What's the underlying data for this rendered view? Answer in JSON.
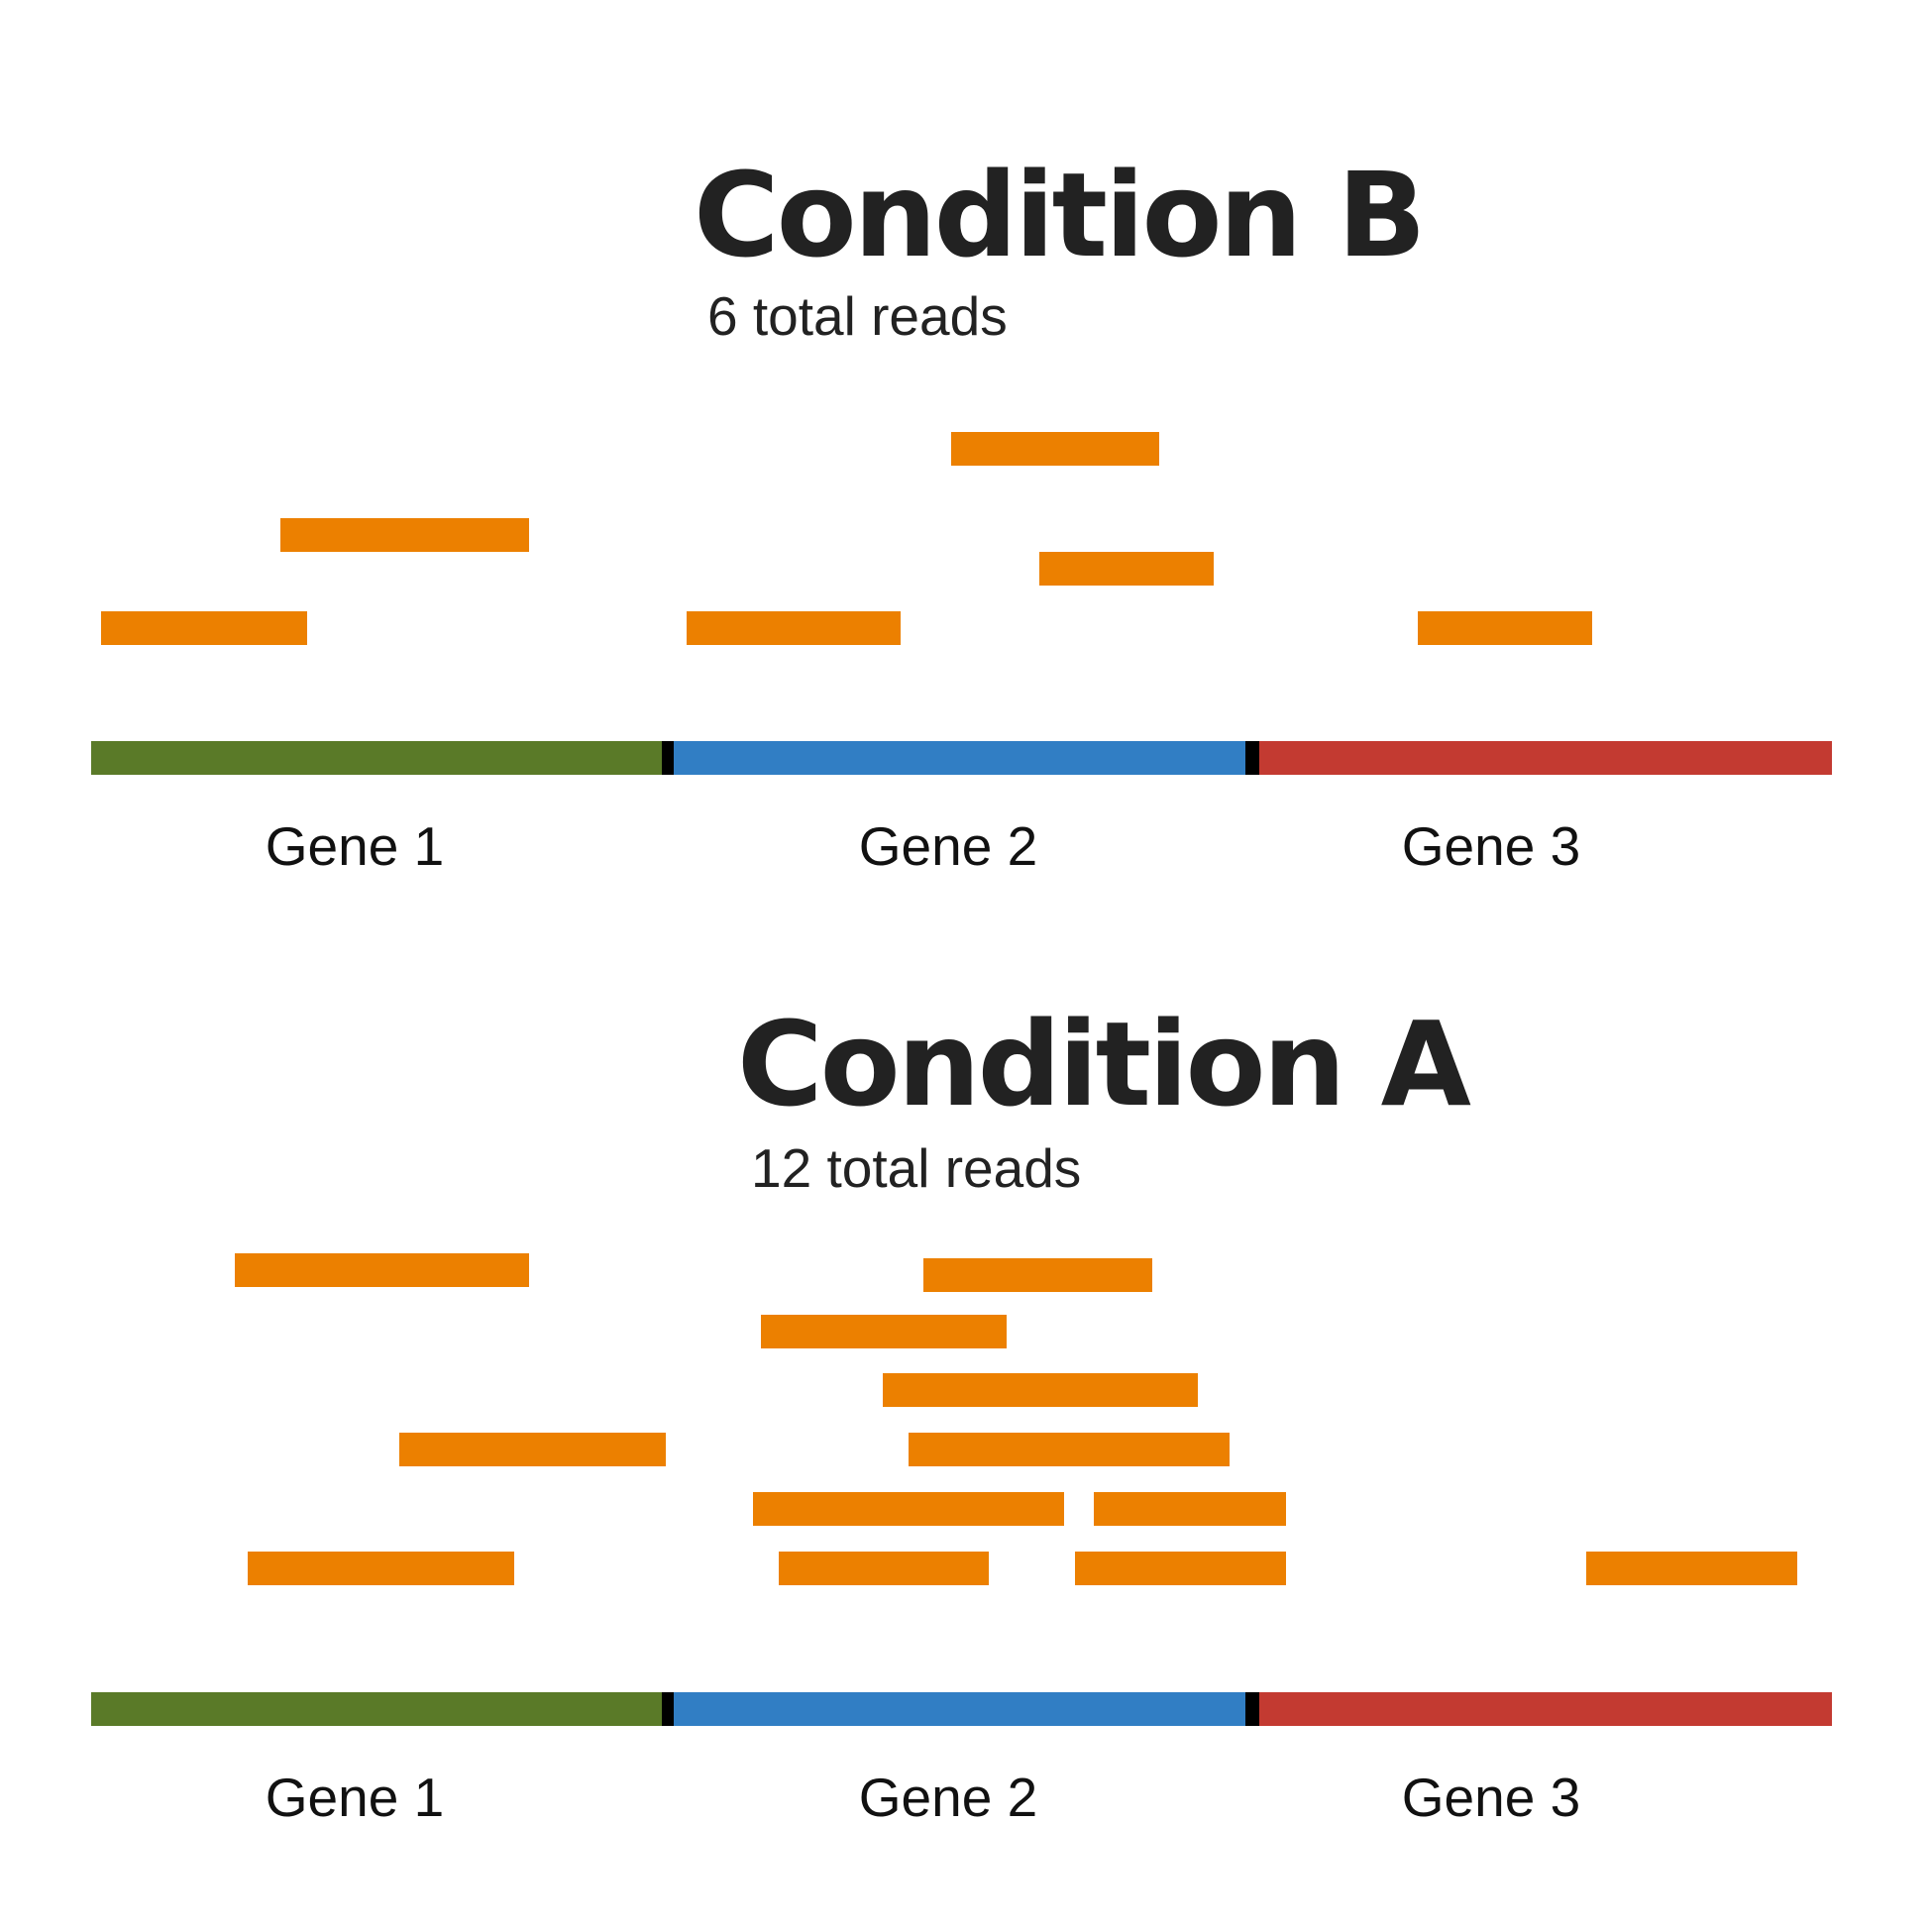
{
  "colors": {
    "read": "#ec8000",
    "gene_1": "#5a7a28",
    "gene_2": "#317ec4",
    "gene_3": "#c33a31",
    "boundary": "#000000",
    "text": "#222222"
  },
  "panels": [
    {
      "title": "Condition B",
      "subtitle": "6 total reads",
      "genes": [
        {
          "label": "Gene 1",
          "color_key": "gene_1"
        },
        {
          "label": "Gene 2",
          "color_key": "gene_2"
        },
        {
          "label": "Gene 3",
          "color_key": "gene_3"
        }
      ],
      "read_count": 6,
      "reads_per_gene": {
        "Gene 1": 2,
        "Gene 2": 3,
        "Gene 3": 1
      }
    },
    {
      "title": "Condition A",
      "subtitle": "12 total reads",
      "genes": [
        {
          "label": "Gene 1",
          "color_key": "gene_1"
        },
        {
          "label": "Gene 2",
          "color_key": "gene_2"
        },
        {
          "label": "Gene 3",
          "color_key": "gene_3"
        }
      ],
      "read_count": 12,
      "reads_per_gene": {
        "Gene 1": 3,
        "Gene 2": 8,
        "Gene 3": 1
      }
    }
  ]
}
